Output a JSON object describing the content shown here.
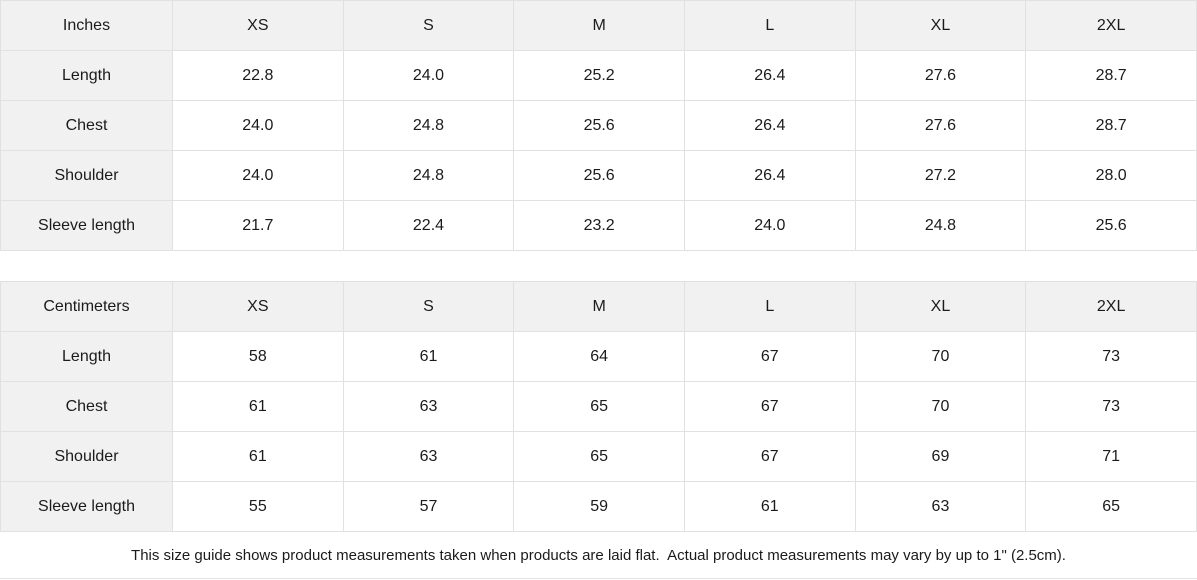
{
  "tables": [
    {
      "unit_label": "Inches",
      "sizes": [
        "XS",
        "S",
        "M",
        "L",
        "XL",
        "2XL"
      ],
      "rows": [
        {
          "label": "Length",
          "values": [
            "22.8",
            "24.0",
            "25.2",
            "26.4",
            "27.6",
            "28.7"
          ]
        },
        {
          "label": "Chest",
          "values": [
            "24.0",
            "24.8",
            "25.6",
            "26.4",
            "27.6",
            "28.7"
          ]
        },
        {
          "label": "Shoulder",
          "values": [
            "24.0",
            "24.8",
            "25.6",
            "26.4",
            "27.2",
            "28.0"
          ]
        },
        {
          "label": "Sleeve length",
          "values": [
            "21.7",
            "22.4",
            "23.2",
            "24.0",
            "24.8",
            "25.6"
          ]
        }
      ]
    },
    {
      "unit_label": "Centimeters",
      "sizes": [
        "XS",
        "S",
        "M",
        "L",
        "XL",
        "2XL"
      ],
      "rows": [
        {
          "label": "Length",
          "values": [
            "58",
            "61",
            "64",
            "67",
            "70",
            "73"
          ]
        },
        {
          "label": "Chest",
          "values": [
            "61",
            "63",
            "65",
            "67",
            "70",
            "73"
          ]
        },
        {
          "label": "Shoulder",
          "values": [
            "61",
            "63",
            "65",
            "67",
            "69",
            "71"
          ]
        },
        {
          "label": "Sleeve length",
          "values": [
            "55",
            "57",
            "59",
            "61",
            "63",
            "65"
          ]
        }
      ]
    }
  ],
  "footer": {
    "note": "This size guide shows product measurements taken when products are laid flat.  Actual product measurements may vary by up to 1\" (2.5cm)."
  },
  "colors": {
    "header_bg": "#f1f1f1",
    "border": "#e1e1e1",
    "text": "#1b1b1b"
  }
}
